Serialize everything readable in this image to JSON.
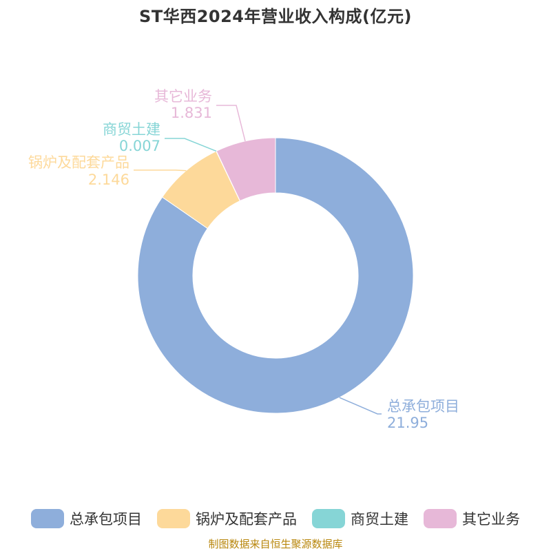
{
  "title": "ST华西2024年营业收入构成(亿元)",
  "source": "制图数据来自恒生聚源数据库",
  "chart_data": {
    "type": "pie",
    "title": "ST华西2024年营业收入构成(亿元)",
    "unit": "亿元",
    "legend_position": "bottom",
    "slices": [
      {
        "name": "总承包项目",
        "value": 21.95,
        "label": "21.95",
        "color": "#8eaedb"
      },
      {
        "name": "锅炉及配套产品",
        "value": 2.146,
        "label": "2.146",
        "color": "#fdd99a"
      },
      {
        "name": "商贸土建",
        "value": 0.007,
        "label": "0.007",
        "color": "#86d5d6"
      },
      {
        "name": "其它业务",
        "value": 1.831,
        "label": "1.831",
        "color": "#e7b8d8"
      }
    ]
  }
}
